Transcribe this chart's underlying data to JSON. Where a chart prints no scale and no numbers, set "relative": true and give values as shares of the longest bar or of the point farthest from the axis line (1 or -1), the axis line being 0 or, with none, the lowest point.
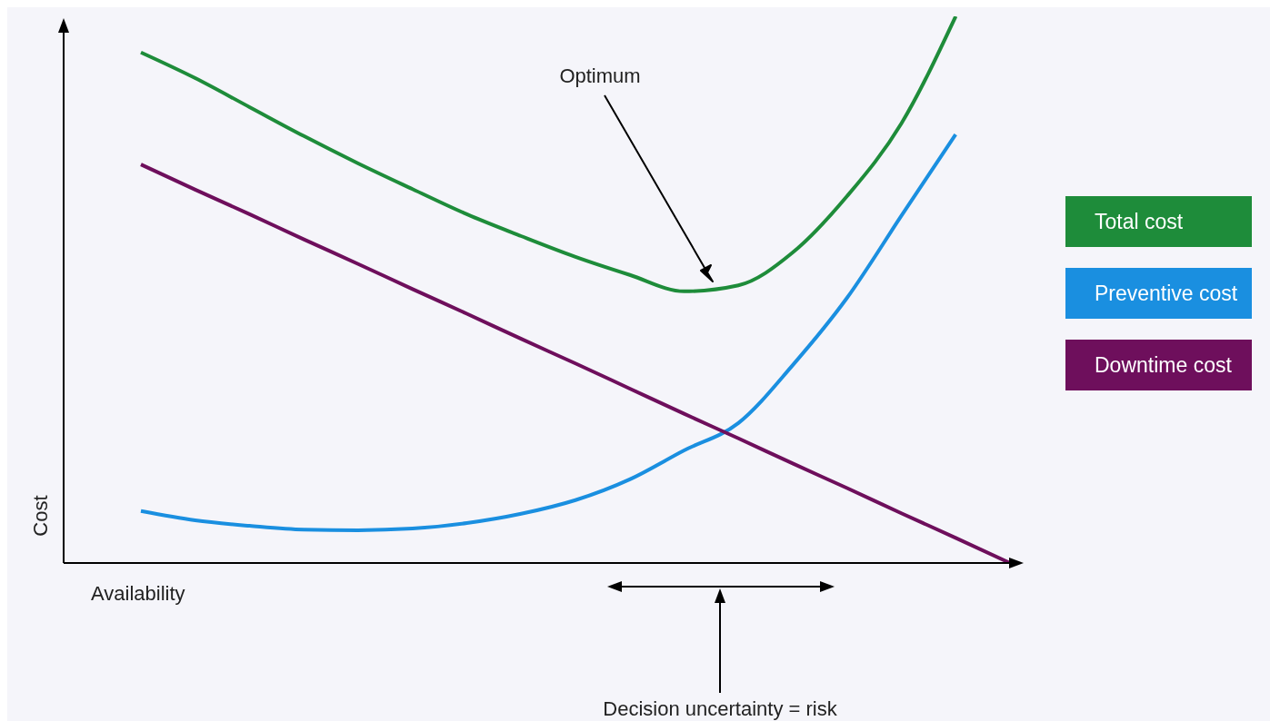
{
  "chart_data": {
    "type": "line",
    "relative": true,
    "xlabel": "Availability",
    "ylabel": "Cost",
    "legend": "right",
    "marker": "none",
    "line_style": "solid",
    "tick_labels": false,
    "annotations": [
      "Optimum",
      "Decision uncertainty = risk"
    ],
    "categories": [
      null,
      null,
      null,
      null,
      null,
      null,
      null,
      null,
      null,
      null,
      null,
      null,
      null,
      null,
      null,
      null,
      null
    ],
    "series": [
      {
        "name": "Total cost",
        "color": "#1e8c3a",
        "values": [
          0.934,
          0.887,
          0.834,
          0.781,
          0.731,
          0.684,
          0.638,
          0.598,
          0.56,
          0.527,
          0.497,
          0.508,
          0.568,
          0.671,
          0.804,
          1,
          null
        ]
      },
      {
        "name": "Preventive cost",
        "color": "#1a8fe0",
        "values": [
          0.095,
          0.078,
          0.068,
          0.061,
          0.06,
          0.063,
          0.073,
          0.09,
          0.115,
          0.153,
          0.206,
          0.256,
          0.362,
          0.485,
          0.635,
          0.784,
          null
        ]
      },
      {
        "name": "Downtime cost",
        "color": "#6e0f5c",
        "values": [
          0.729,
          0.683,
          0.638,
          0.592,
          0.547,
          0.501,
          0.456,
          0.41,
          0.365,
          0.319,
          0.273,
          0.228,
          0.182,
          0.137,
          0.091,
          0.046,
          0
        ]
      }
    ]
  }
}
